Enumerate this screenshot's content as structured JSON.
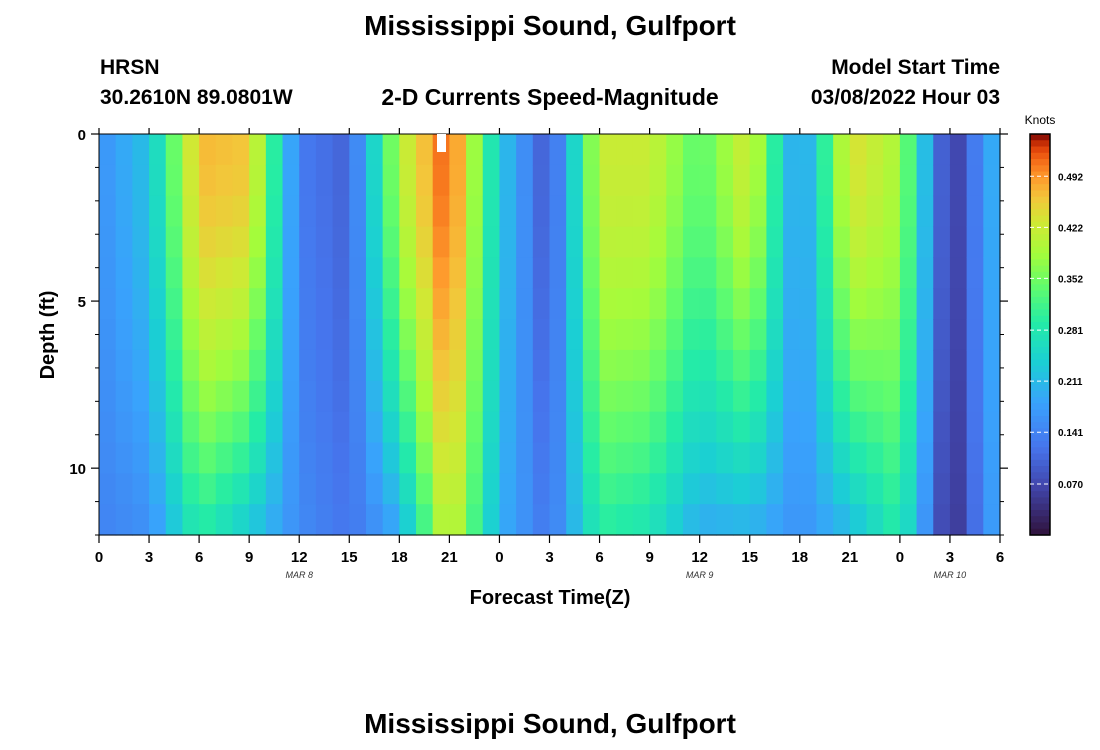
{
  "page": {
    "title": "Mississippi Sound, Gulfport",
    "footer_title": "Mississippi Sound, Gulfport"
  },
  "header": {
    "station_code": "HRSN",
    "coordinates": "30.2610N  89.0801W",
    "chart_subtitle": "2-D Currents Speed-Magnitude",
    "model_label": "Model Start Time",
    "model_time": "03/08/2022 Hour 03"
  },
  "chart_data": {
    "type": "heatmap",
    "title": "2-D Currents Speed-Magnitude",
    "xlabel": "Forecast Time(Z)",
    "ylabel": "Depth (ft)",
    "x_range_hours": [
      0,
      54
    ],
    "x_tick_labels": [
      "0",
      "3",
      "6",
      "9",
      "12",
      "15",
      "18",
      "21",
      "0",
      "3",
      "6",
      "9",
      "12",
      "15",
      "18",
      "21",
      "0",
      "3",
      "6"
    ],
    "date_labels": [
      {
        "text": "MAR 8",
        "hour": 12
      },
      {
        "text": "MAR 9",
        "hour": 36
      },
      {
        "text": "MAR 10",
        "hour": 51
      }
    ],
    "y_range_ft": [
      0,
      12
    ],
    "y_tick_labels": [
      "0",
      "5",
      "10"
    ],
    "y_ticks_ft": [
      0,
      5,
      10
    ],
    "colorbar": {
      "label": "Knots",
      "min": 0.0,
      "max": 0.55,
      "ticks": [
        "0.070",
        "0.141",
        "0.211",
        "0.281",
        "0.352",
        "0.422",
        "0.492"
      ]
    },
    "depth_levels_ft": [
      0,
      1,
      2,
      3,
      4,
      5,
      6,
      7,
      8,
      9,
      10,
      11,
      12
    ],
    "time_hours": [
      0,
      3,
      6,
      9,
      12,
      15,
      18,
      21,
      24,
      27,
      30,
      33,
      36,
      39,
      42,
      45,
      48,
      51,
      54
    ],
    "speed_knots_surface": [
      0.16,
      0.22,
      0.47,
      0.46,
      0.13,
      0.1,
      0.4,
      0.53,
      0.23,
      0.08,
      0.42,
      0.42,
      0.33,
      0.43,
      0.16,
      0.44,
      0.39,
      0.04,
      0.22
    ],
    "speed_knots_bottom": [
      0.14,
      0.16,
      0.3,
      0.24,
      0.15,
      0.12,
      0.2,
      0.44,
      0.2,
      0.12,
      0.3,
      0.28,
      0.2,
      0.21,
      0.16,
      0.22,
      0.3,
      0.03,
      0.2
    ]
  }
}
